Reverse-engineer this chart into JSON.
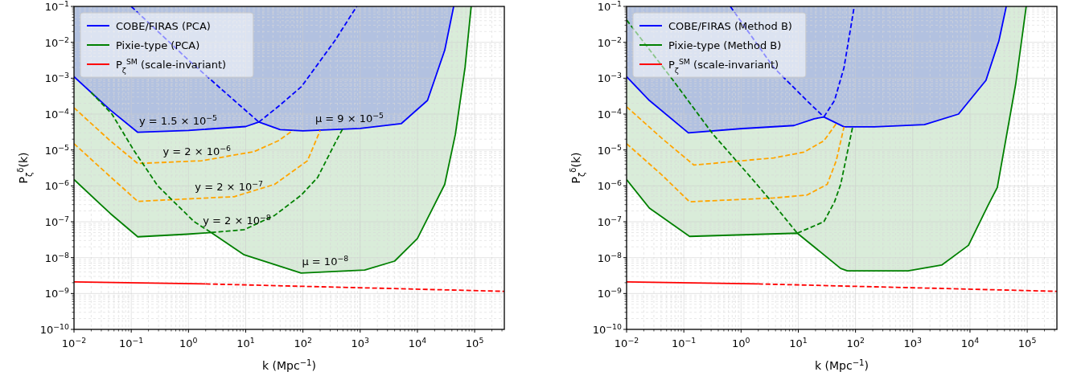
{
  "chart_data": [
    {
      "type": "line",
      "xlabel": "k (Mpc$^{−1}$)",
      "ylabel": "P$_{ζ}$$^{δ}$(k)",
      "log": "xy",
      "grid": true,
      "legend": "top left",
      "xlim": [
        0.01,
        330000
      ],
      "ylim": [
        1e-10,
        0.1
      ],
      "xticks": [
        {
          "value": 0.01,
          "label": "10$^{−2}$"
        },
        {
          "value": 0.1,
          "label": "10$^{−1}$"
        },
        {
          "value": 1,
          "label": "10$^{0}$"
        },
        {
          "value": 10,
          "label": "10$^{1}$"
        },
        {
          "value": 100,
          "label": "10$^{2}$"
        },
        {
          "value": 1000,
          "label": "10$^{3}$"
        },
        {
          "value": 10000,
          "label": "10$^{4}$"
        },
        {
          "value": 100000,
          "label": "10$^{5}$"
        }
      ],
      "yticks": [
        {
          "value": 1e-10,
          "label": "10$^{−10}$"
        },
        {
          "value": 1e-09,
          "label": "10$^{−9}$"
        },
        {
          "value": 1e-08,
          "label": "10$^{−8}$"
        },
        {
          "value": 1e-07,
          "label": "10$^{−7}$"
        },
        {
          "value": 1e-06,
          "label": "10$^{−6}$"
        },
        {
          "value": 1e-05,
          "label": "10$^{−5}$"
        },
        {
          "value": 0.0001,
          "label": "10$^{−4}$"
        },
        {
          "value": 0.001,
          "label": "10$^{−3}$"
        },
        {
          "value": 0.01,
          "label": "10$^{−2}$"
        },
        {
          "value": 0.1,
          "label": "10$^{−1}$"
        }
      ],
      "series": [
        {
          "name": "COBE/FIRAS (PCA)",
          "color": "#0000ff",
          "line_style": "solid",
          "x": [
            0.01,
            0.043,
            0.13,
            1,
            10,
            17,
            40,
            100,
            1000,
            5200,
            15000,
            30000,
            43000
          ],
          "values": [
            0.0011,
            0.00013,
            3.1e-05,
            3.5e-05,
            4.5e-05,
            6e-05,
            3.7e-05,
            3.4e-05,
            4e-05,
            5.4e-05,
            0.00024,
            0.006,
            0.1
          ],
          "lower": [
            0.0011,
            0.00013,
            3.1e-05,
            3.5e-05,
            4.5e-05,
            6e-05,
            3.7e-05,
            3.4e-05,
            4e-05,
            5.4e-05,
            0.00024,
            0.006,
            0.1
          ],
          "upper": [
            0.1,
            0.1,
            0.1,
            0.1,
            0.1,
            0.1,
            0.1,
            0.1,
            0.1,
            0.1,
            0.1,
            0.1,
            0.1
          ]
        },
        {
          "name": "Pixie-type (PCA)",
          "color": "#008000",
          "line_style": "solid",
          "x": [
            0.01,
            0.043,
            0.13,
            0.95,
            2.5,
            9.4,
            93,
            1200,
            4000,
            10000,
            30000,
            46000,
            68000,
            87000
          ],
          "values": [
            1.5e-06,
            1.7e-07,
            3.8e-08,
            4.5e-08,
            5e-08,
            1.2e-08,
            3.7e-09,
            4.5e-09,
            8e-09,
            3.4e-08,
            1.1e-06,
            2.7e-05,
            0.002,
            0.1
          ],
          "lower": [
            1.5e-06,
            1.7e-07,
            3.8e-08,
            4.5e-08,
            5e-08,
            1.2e-08,
            3.7e-09,
            4.5e-09,
            8e-09,
            3.4e-08,
            1.1e-06,
            2.7e-05,
            0.002,
            0.1
          ],
          "upper": [
            0.1,
            0.1,
            0.1,
            0.1,
            0.1,
            0.1,
            0.1,
            0.1,
            0.1,
            0.1,
            0.1,
            0.1,
            0.1,
            0.1
          ]
        },
        {
          "name": "P$_{ζ}$$^{SM}$ (scale-invariant)",
          "color": "#ff0000",
          "line_style": "solid",
          "x": [
            0.01,
            2
          ],
          "values": [
            2.1e-09,
            1.85e-09
          ]
        },
        {
          "color": "#ff0000",
          "line_style": "dashed",
          "x": [
            2,
            330000
          ],
          "values": [
            1.85e-09,
            1.15e-09
          ]
        },
        {
          "color": "#0000ff",
          "line_style": "dashed",
          "x": [
            17,
            40,
            94,
            360,
            870
          ],
          "values": [
            6e-05,
            0.00018,
            0.00058,
            0.011,
            0.1
          ]
        },
        {
          "color": "#0000ff",
          "line_style": "dashed",
          "x": [
            0.1,
            1,
            6.3,
            17
          ],
          "values": [
            0.1,
            0.0032,
            0.00024,
            6e-05
          ]
        },
        {
          "color": "#ffa500",
          "line_style": "dashed",
          "x": [
            0.01,
            0.043,
            0.13,
            1.7,
            14,
            37,
            67
          ],
          "values": [
            0.00015,
            1.8e-05,
            4.2e-06,
            5e-06,
            9e-06,
            1.8e-05,
            3.5e-05
          ]
        },
        {
          "color": "#ffa500",
          "line_style": "dashed",
          "x": [
            0.01,
            0.043,
            0.13,
            6.3,
            32,
            120,
            200
          ],
          "values": [
            1.5e-05,
            1.8e-06,
            3.7e-07,
            5e-07,
            1.1e-06,
            5e-06,
            3.5e-05
          ]
        },
        {
          "color": "#008000",
          "line_style": "dashed",
          "x": [
            2.5,
            9.4,
            32,
            93,
            180,
            360,
            500
          ],
          "values": [
            5e-08,
            6e-08,
            1.5e-07,
            5.5e-07,
            1.7e-06,
            1.5e-05,
            4e-05
          ]
        },
        {
          "color": "#008000",
          "line_style": "dashed",
          "x": [
            0.02,
            0.046,
            0.11,
            0.29,
            1.26,
            2.5
          ],
          "values": [
            0.0004,
            0.0001,
            1e-05,
            1e-06,
            1e-07,
            5e-08
          ]
        }
      ],
      "annotations": [
        {
          "text": "y = 1.5 × 10$^{−5}$",
          "x": 0.66,
          "y": 3.4e-05
        },
        {
          "text": "μ = 9 × 10$^{−5}$",
          "x": 650,
          "y": 3.9e-05
        },
        {
          "text": "y = 2 × 10$^{−6}$",
          "x": 1.4,
          "y": 4.9e-06
        },
        {
          "text": "y = 2 × 10$^{−7}$",
          "x": 5.1,
          "y": 4.9e-07
        },
        {
          "text": "y = 2 × 10$^{−8}$",
          "x": 7,
          "y": 5.7e-08
        },
        {
          "text": "μ = 10$^{−8}$",
          "x": 245,
          "y": 4e-09
        }
      ]
    },
    {
      "type": "line",
      "xlabel": "k (Mpc$^{−1}$)",
      "ylabel": "P$_{ζ}$$^{δ}$(k)",
      "log": "xy",
      "grid": true,
      "legend": "top left",
      "xlim": [
        0.01,
        330000
      ],
      "ylim": [
        1e-10,
        0.1
      ],
      "xticks": [
        {
          "value": 0.01,
          "label": "10$^{−2}$"
        },
        {
          "value": 0.1,
          "label": "10$^{−1}$"
        },
        {
          "value": 1,
          "label": "10$^{0}$"
        },
        {
          "value": 10,
          "label": "10$^{1}$"
        },
        {
          "value": 100,
          "label": "10$^{2}$"
        },
        {
          "value": 1000,
          "label": "10$^{3}$"
        },
        {
          "value": 10000,
          "label": "10$^{4}$"
        },
        {
          "value": 100000,
          "label": "10$^{5}$"
        }
      ],
      "yticks": [
        {
          "value": 1e-10,
          "label": "10$^{−10}$"
        },
        {
          "value": 1e-09,
          "label": "10$^{−9}$"
        },
        {
          "value": 1e-08,
          "label": "10$^{−8}$"
        },
        {
          "value": 1e-07,
          "label": "10$^{−7}$"
        },
        {
          "value": 1e-06,
          "label": "10$^{−6}$"
        },
        {
          "value": 1e-05,
          "label": "10$^{−5}$"
        },
        {
          "value": 0.0001,
          "label": "10$^{−4}$"
        },
        {
          "value": 0.001,
          "label": "10$^{−3}$"
        },
        {
          "value": 0.01,
          "label": "10$^{−2}$"
        },
        {
          "value": 0.1,
          "label": "10$^{−1}$"
        }
      ],
      "series": [
        {
          "name": "COBE/FIRAS (Method B)",
          "color": "#0000ff",
          "line_style": "solid",
          "x": [
            0.01,
            0.025,
            0.12,
            0.95,
            8.4,
            19,
            28,
            63,
            215,
            1600,
            6300,
            19000,
            32000,
            43000
          ],
          "values": [
            0.0011,
            0.00024,
            3e-05,
            3.9e-05,
            4.8e-05,
            7.4e-05,
            8.3e-05,
            4.4e-05,
            4.4e-05,
            5.1e-05,
            0.0001,
            0.00087,
            0.011,
            0.1
          ],
          "lower": [
            0.0011,
            0.00024,
            3e-05,
            3.9e-05,
            4.8e-05,
            7.4e-05,
            8.3e-05,
            4.4e-05,
            4.4e-05,
            5.1e-05,
            0.0001,
            0.00087,
            0.011,
            0.1
          ],
          "upper": [
            0.1,
            0.1,
            0.1,
            0.1,
            0.1,
            0.1,
            0.1,
            0.1,
            0.1,
            0.1,
            0.1,
            0.1,
            0.1,
            0.1
          ]
        },
        {
          "name": "Pixie-type (Method B)",
          "color": "#008000",
          "line_style": "solid",
          "x": [
            0.01,
            0.025,
            0.126,
            9.6,
            55,
            72,
            830,
            3200,
            9400,
            21000,
            30000,
            63000,
            96000
          ],
          "values": [
            1.5e-06,
            2.4e-07,
            3.9e-08,
            4.8e-08,
            5e-09,
            4.3e-09,
            4.3e-09,
            6.2e-09,
            2.2e-08,
            3e-07,
            9e-07,
            0.0007,
            0.1
          ],
          "lower": [
            1.5e-06,
            2.4e-07,
            3.9e-08,
            4.8e-08,
            5e-09,
            4.3e-09,
            4.3e-09,
            6.2e-09,
            2.2e-08,
            3e-07,
            9e-07,
            0.0007,
            0.1
          ],
          "upper": [
            0.1,
            0.1,
            0.1,
            0.1,
            0.1,
            0.1,
            0.1,
            0.1,
            0.1,
            0.1,
            0.1,
            0.1,
            0.1
          ]
        },
        {
          "name": "P$_{ζ}$$^{SM}$ (scale-invariant)",
          "color": "#ff0000",
          "line_style": "solid",
          "x": [
            0.01,
            2
          ],
          "values": [
            2.1e-09,
            1.85e-09
          ]
        },
        {
          "color": "#ff0000",
          "line_style": "dashed",
          "x": [
            2,
            330000
          ],
          "values": [
            1.85e-09,
            1.15e-09
          ]
        },
        {
          "color": "#0000ff",
          "line_style": "dashed",
          "x": [
            28,
            43,
            63,
            95
          ],
          "values": [
            8.3e-05,
            0.00024,
            0.002,
            0.1
          ]
        },
        {
          "color": "#0000ff",
          "line_style": "dashed",
          "x": [
            0.65,
            3.7,
            14,
            28
          ],
          "values": [
            0.1,
            0.002,
            0.00024,
            8.3e-05
          ]
        },
        {
          "color": "#ffa500",
          "line_style": "dashed",
          "x": [
            0.01,
            0.043,
            0.15,
            3.7,
            12.6,
            28,
            46
          ],
          "values": [
            0.00016,
            2e-05,
            3.8e-06,
            6e-06,
            8.7e-06,
            1.8e-05,
            5.4e-05
          ]
        },
        {
          "color": "#ffa500",
          "line_style": "dashed",
          "x": [
            0.01,
            0.043,
            0.126,
            3.7,
            14,
            32,
            46,
            63
          ],
          "values": [
            1.5e-05,
            1.9e-06,
            3.6e-07,
            4.6e-07,
            5.5e-07,
            1.1e-06,
            5e-06,
            4.4e-05
          ]
        },
        {
          "color": "#008000",
          "line_style": "dashed",
          "x": [
            9.6,
            28,
            43,
            55,
            73,
            89
          ],
          "values": [
            4.8e-08,
            1e-07,
            3.6e-07,
            1.1e-06,
            9.5e-06,
            4.4e-05
          ]
        },
        {
          "color": "#008000",
          "line_style": "dashed",
          "x": [
            0.01,
            0.065,
            0.32,
            1.66,
            3.7,
            9.6
          ],
          "values": [
            0.042,
            0.00087,
            2.8e-05,
            1.4e-06,
            3.1e-07,
            4.8e-08
          ]
        }
      ]
    }
  ]
}
